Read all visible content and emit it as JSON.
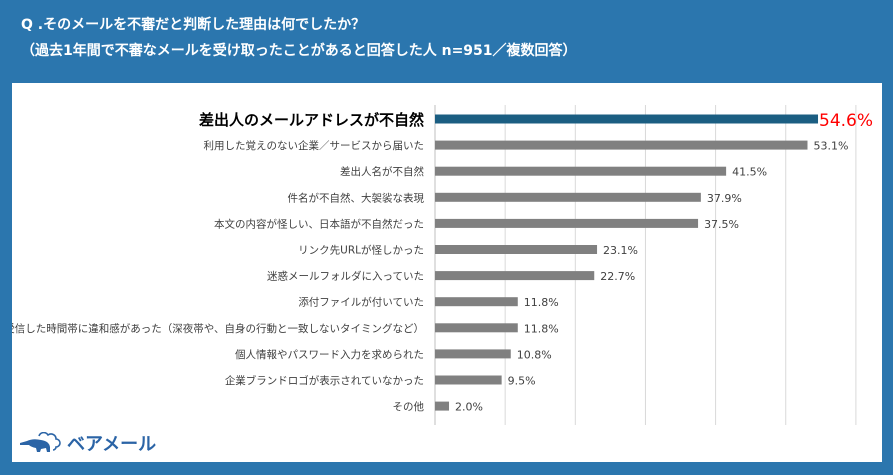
{
  "header": {
    "question": "Q .そのメールを不審だと判断した理由は何でしたか？",
    "subtitle": "（過去1年間で不審なメールを受け取ったことがあると回答した人 n=951／複数回答）"
  },
  "logo": {
    "text": "ベアメール"
  },
  "colors": {
    "background": "#2b76ae",
    "highlight_bar": "#1b5e82",
    "bar": "#808080",
    "highlight_label": "#ff0000"
  },
  "chart_data": {
    "type": "bar",
    "orientation": "horizontal",
    "categories": [
      "差出人のメールアドレスが不自然",
      "利用した覚えのない企業／サービスから届いた",
      "差出人名が不自然",
      "件名が不自然、大袈裟な表現",
      "本文の内容が怪しい、日本語が不自然だった",
      "リンク先URLが怪しかった",
      "迷惑メールフォルダに入っていた",
      "添付ファイルが付いていた",
      "受信した時間帯に違和感があった（深夜帯や、自身の行動と一致しないタイミングなど）",
      "個人情報やパスワード入力を求められた",
      "企業ブランドロゴが表示されていなかった",
      "その他"
    ],
    "values": [
      54.6,
      53.1,
      41.5,
      37.9,
      37.5,
      23.1,
      22.7,
      11.8,
      11.8,
      10.8,
      9.5,
      2.0
    ],
    "value_labels": [
      "54.6%",
      "53.1%",
      "41.5%",
      "37.9%",
      "37.5%",
      "23.1%",
      "22.7%",
      "11.8%",
      "11.8%",
      "10.8%",
      "9.5%",
      "2.0%"
    ],
    "xlim": [
      0,
      60
    ],
    "grid": true,
    "gridline_step": 10,
    "highlighted_index": 0
  }
}
